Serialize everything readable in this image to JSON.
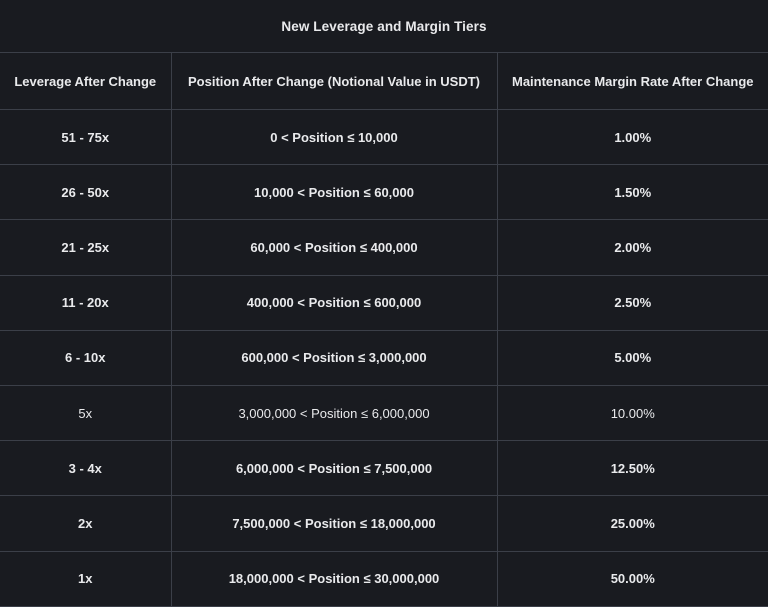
{
  "title": "New Leverage and Margin Tiers",
  "colors": {
    "background": "#191b20",
    "border": "#3b3f48",
    "text": "#e9eaec"
  },
  "table": {
    "columns": [
      "Leverage After Change",
      "Position After Change (Notional Value in USDT)",
      "Maintenance Margin Rate After Change"
    ],
    "rows": [
      {
        "leverage": "51 - 75x",
        "position": "0 < Position ≤ 10,000",
        "margin_rate": "1.00%",
        "bold": true
      },
      {
        "leverage": "26 - 50x",
        "position": "10,000 < Position ≤ 60,000",
        "margin_rate": "1.50%",
        "bold": true
      },
      {
        "leverage": "21 - 25x",
        "position": "60,000 < Position ≤ 400,000",
        "margin_rate": "2.00%",
        "bold": true
      },
      {
        "leverage": "11 - 20x",
        "position": "400,000 < Position ≤ 600,000",
        "margin_rate": "2.50%",
        "bold": true
      },
      {
        "leverage": "6 - 10x",
        "position": "600,000 < Position ≤ 3,000,000",
        "margin_rate": "5.00%",
        "bold": true
      },
      {
        "leverage": "5x",
        "position": "3,000,000 < Position ≤ 6,000,000",
        "margin_rate": "10.00%",
        "bold": false
      },
      {
        "leverage": "3 - 4x",
        "position": "6,000,000 < Position ≤ 7,500,000",
        "margin_rate": "12.50%",
        "bold": true
      },
      {
        "leverage": "2x",
        "position": "7,500,000 < Position ≤ 18,000,000",
        "margin_rate": "25.00%",
        "bold": true
      },
      {
        "leverage": "1x",
        "position": "18,000,000 < Position ≤ 30,000,000",
        "margin_rate": "50.00%",
        "bold": true
      }
    ]
  }
}
